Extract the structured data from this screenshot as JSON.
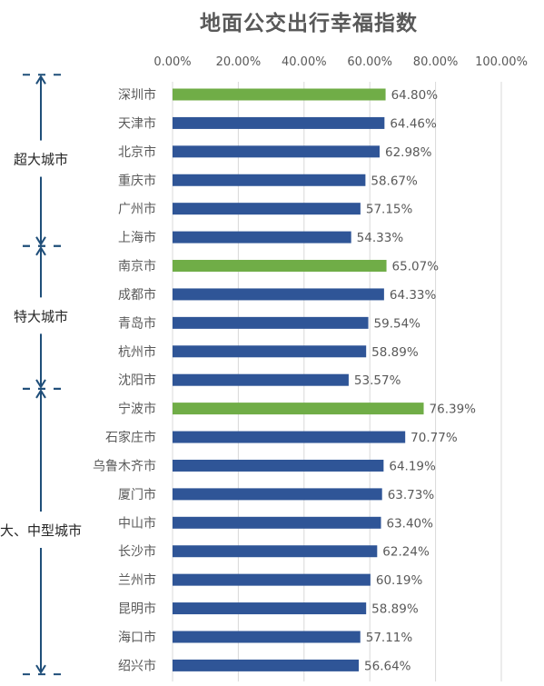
{
  "chart_data": {
    "type": "bar",
    "orientation": "horizontal",
    "title": "地面公交出行幸福指数",
    "xlabel": "",
    "ylabel": "",
    "xlim": [
      0,
      100
    ],
    "x_ticks": [
      "0.00%",
      "20.00%",
      "40.00%",
      "60.00%",
      "80.00%",
      "100.00%"
    ],
    "x_axis_position": "top",
    "grid": true,
    "value_unit": "%",
    "categories": [
      "深圳市",
      "天津市",
      "北京市",
      "重庆市",
      "广州市",
      "上海市",
      "南京市",
      "成都市",
      "青岛市",
      "杭州市",
      "沈阳市",
      "宁波市",
      "石家庄市",
      "乌鲁木齐市",
      "厦门市",
      "中山市",
      "长沙市",
      "兰州市",
      "昆明市",
      "海口市",
      "绍兴市"
    ],
    "values": [
      64.8,
      64.46,
      62.98,
      58.67,
      57.15,
      54.33,
      65.07,
      64.33,
      59.54,
      58.89,
      53.57,
      76.39,
      70.77,
      64.19,
      63.73,
      63.4,
      62.24,
      60.19,
      58.89,
      57.11,
      56.64
    ],
    "value_labels": [
      "64.80%",
      "64.46%",
      "62.98%",
      "58.67%",
      "57.15%",
      "54.33%",
      "65.07%",
      "64.33%",
      "59.54%",
      "58.89%",
      "53.57%",
      "76.39%",
      "70.77%",
      "64.19%",
      "63.73%",
      "63.40%",
      "62.24%",
      "60.19%",
      "58.89%",
      "57.11%",
      "56.64%"
    ],
    "highlighted": [
      "深圳市",
      "南京市",
      "宁波市"
    ],
    "groups": [
      {
        "label": "超大城市",
        "members": [
          "深圳市",
          "天津市",
          "北京市",
          "重庆市",
          "广州市",
          "上海市"
        ]
      },
      {
        "label": "特大城市",
        "members": [
          "南京市",
          "成都市",
          "青岛市",
          "杭州市",
          "沈阳市"
        ]
      },
      {
        "label": "大、中型城市",
        "members": [
          "宁波市",
          "石家庄市",
          "乌鲁木齐市",
          "厦门市",
          "中山市",
          "长沙市",
          "兰州市",
          "昆明市",
          "海口市",
          "绍兴市"
        ]
      }
    ]
  },
  "colors": {
    "bar": "#2f5597",
    "bar_highlight": "#70ad47",
    "grid": "#d9d9d9",
    "text": "#595959",
    "bracket": "#1f4e79"
  }
}
